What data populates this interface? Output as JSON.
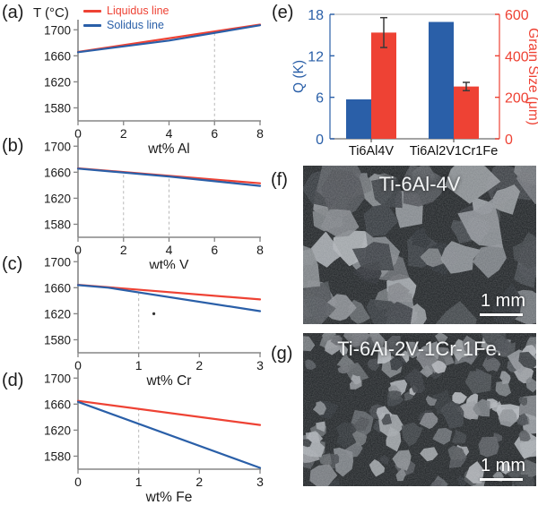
{
  "panels": {
    "a": {
      "tag": "(a)",
      "y_axis_title": "T (°C)"
    },
    "b": {
      "tag": "(b)"
    },
    "c": {
      "tag": "(c)"
    },
    "d": {
      "tag": "(d)"
    },
    "e": {
      "tag": "(e)"
    },
    "f": {
      "tag": "(f)",
      "label": "Ti-6Al-4V",
      "scale_bar": "1 mm"
    },
    "g": {
      "tag": "(g)",
      "label": "Ti-6Al-2V-1Cr-1Fe.",
      "scale_bar": "1 mm"
    }
  },
  "legend": {
    "items": [
      {
        "label": "Liquidus line",
        "color": "#ee4234"
      },
      {
        "label": "Solidus line",
        "color": "#2a5fa8"
      }
    ]
  },
  "colors": {
    "liquidus": "#ee4234",
    "solidus": "#2a5fa8",
    "axis": "#858585",
    "dash": "#b8b8b8",
    "error_bar": "#3a3a3a",
    "frame_light": "#bfbfbf",
    "micro_background": "#181c1f",
    "tick_text": "#1a1a1a"
  },
  "chart_data": [
    {
      "panel": "a",
      "type": "line",
      "xlabel": "wt% Al",
      "xlim": [
        0,
        8
      ],
      "xticks": [
        0,
        2,
        4,
        6,
        8
      ],
      "ylim": [
        1560,
        1710
      ],
      "yticks": [
        1580,
        1620,
        1660,
        1700
      ],
      "series": [
        {
          "name": "Liquidus line",
          "color": "#ee4234",
          "points": [
            [
              0,
              1666
            ],
            [
              8,
              1708
            ]
          ]
        },
        {
          "name": "Solidus line",
          "color": "#2a5fa8",
          "points": [
            [
              0,
              1665.5
            ],
            [
              4,
              1683.5
            ],
            [
              8,
              1707
            ]
          ]
        }
      ],
      "dashed_x": [
        {
          "x": 6,
          "top": 1695
        }
      ]
    },
    {
      "panel": "b",
      "type": "line",
      "xlabel": "wt% V",
      "xlim": [
        0,
        8
      ],
      "xticks": [
        0,
        2,
        4,
        6,
        8
      ],
      "ylim": [
        1560,
        1710
      ],
      "yticks": [
        1580,
        1620,
        1660,
        1700
      ],
      "series": [
        {
          "name": "Liquidus line",
          "color": "#ee4234",
          "points": [
            [
              0,
              1666
            ],
            [
              8,
              1643
            ]
          ]
        },
        {
          "name": "Solidus line",
          "color": "#2a5fa8",
          "points": [
            [
              0,
              1665.5
            ],
            [
              4,
              1653.5
            ],
            [
              8,
              1639
            ]
          ]
        }
      ],
      "dashed_x": [
        {
          "x": 2,
          "top": 1656
        },
        {
          "x": 4,
          "top": 1650
        }
      ]
    },
    {
      "panel": "c",
      "type": "line",
      "xlabel": "wt% Cr",
      "xlim": [
        0,
        3
      ],
      "xticks": [
        0,
        1,
        2,
        3
      ],
      "ylim": [
        1560,
        1710
      ],
      "yticks": [
        1580,
        1620,
        1660,
        1700
      ],
      "series": [
        {
          "name": "Liquidus line",
          "color": "#ee4234",
          "points": [
            [
              0,
              1664.5
            ],
            [
              3,
              1642
            ]
          ]
        },
        {
          "name": "Solidus line",
          "color": "#2a5fa8",
          "points": [
            [
              0,
              1664
            ],
            [
              0.5,
              1660
            ],
            [
              3,
              1624
            ]
          ]
        }
      ],
      "dashed_x": [
        {
          "x": 1,
          "top": 1652
        }
      ],
      "marker": {
        "x": 1.25,
        "y": 1620
      }
    },
    {
      "panel": "d",
      "type": "line",
      "xlabel": "wt% Fe",
      "xlim": [
        0,
        3
      ],
      "xticks": [
        0,
        1,
        2,
        3
      ],
      "ylim": [
        1560,
        1710
      ],
      "yticks": [
        1580,
        1620,
        1660,
        1700
      ],
      "series": [
        {
          "name": "Liquidus line",
          "color": "#ee4234",
          "points": [
            [
              0,
              1665
            ],
            [
              3,
              1628
            ]
          ]
        },
        {
          "name": "Solidus line",
          "color": "#2a5fa8",
          "points": [
            [
              0,
              1663.5
            ],
            [
              3,
              1562
            ]
          ]
        }
      ],
      "dashed_x": [
        {
          "x": 1,
          "top": 1654
        }
      ]
    },
    {
      "panel": "e",
      "type": "bar",
      "categories": [
        "Ti6Al4V",
        "Ti6Al2V1Cr1Fe"
      ],
      "left_axis": {
        "label": "Q (K)",
        "lim": [
          0,
          18
        ],
        "ticks": [
          0,
          6,
          12,
          18
        ],
        "color": "#2a5fa8"
      },
      "right_axis": {
        "label": "Grain Size (μm)",
        "lim": [
          0,
          600
        ],
        "ticks": [
          0,
          200,
          400,
          600
        ],
        "color": "#ee4234"
      },
      "series": [
        {
          "name": "Q (K)",
          "axis": "left",
          "color": "#2a5fa8",
          "values": [
            5.7,
            16.9
          ]
        },
        {
          "name": "Grain Size (μm)",
          "axis": "right",
          "color": "#ee4234",
          "values": [
            512,
            252
          ],
          "errors": [
            72,
            20
          ]
        }
      ],
      "legend_position": "none",
      "grid": false
    }
  ]
}
